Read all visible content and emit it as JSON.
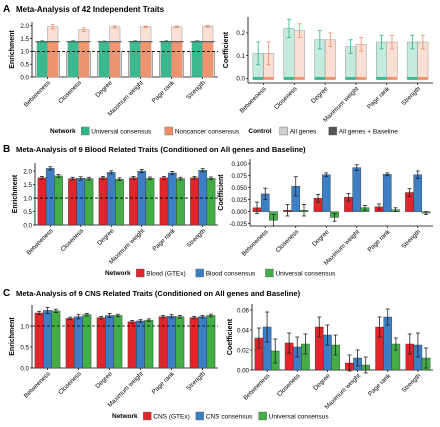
{
  "legend_labels": {
    "network": "Network",
    "control": "Control"
  },
  "colors": {
    "universal": "#2DB58A",
    "noncancer": "#EE8E66",
    "allgenes": "#CFCFCF",
    "allgenes_baseline": "#555555",
    "blood_gtex": "#E0262A",
    "blood_consensus": "#3C7FC4",
    "cns_gtex": "#E0262A",
    "cns_consensus": "#3C7FC4",
    "universal_b": "#43AD46"
  },
  "panels": [
    {
      "letter": "A",
      "title": "Meta-Analysis of 42 Independent Traits",
      "legend": [
        {
          "label": "Universal consensus",
          "color_key": "universal"
        },
        {
          "label": "Noncancer consensus",
          "color_key": "noncancer"
        }
      ],
      "control_legend": [
        {
          "label": "All genes",
          "color_key": "allgenes"
        },
        {
          "label": "All genes + Baseline",
          "color_key": "allgenes_baseline"
        }
      ]
    },
    {
      "letter": "B",
      "title": "Meta-Analysis of 9 Blood Related Traits (Conditioned on All genes and Baseline)",
      "legend": [
        {
          "label": "Blood (GTEx)",
          "color_key": "blood_gtex"
        },
        {
          "label": "Blood consensus",
          "color_key": "blood_consensus"
        },
        {
          "label": "Universal consensus",
          "color_key": "universal_b"
        }
      ]
    },
    {
      "letter": "C",
      "title": "Meta-Analysis of 9 CNS Related Traits (Conditioned on All genes and Baseline)",
      "legend": [
        {
          "label": "CNS (GTEx)",
          "color_key": "cns_gtex"
        },
        {
          "label": "CNS consensus",
          "color_key": "cns_consensus"
        },
        {
          "label": "Universal consensus",
          "color_key": "universal_b"
        }
      ]
    }
  ],
  "chart_data": [
    {
      "id": "A-enrichment",
      "type": "bar",
      "ylabel": "Enrichment",
      "categories": [
        "Betweeness",
        "Closeness",
        "Degree",
        "Maximum weight",
        "Page rank",
        "Strength"
      ],
      "ylim": [
        0,
        2.15
      ],
      "yticks": [
        0,
        0.5,
        1.0,
        1.5,
        2.0
      ],
      "ytick_labels": [
        "0.0",
        "0.5",
        "1.0",
        "1.5",
        "2.0"
      ],
      "refline": 1.0,
      "series": [
        {
          "color_key": "universal",
          "values": [
            1.38,
            1.38,
            1.37,
            1.4,
            1.4,
            1.4
          ],
          "err": [
            0.05,
            0.05,
            0.04,
            0.03,
            0.03,
            0.03
          ]
        },
        {
          "color_key": "noncancer",
          "values": [
            1.97,
            1.85,
            1.96,
            1.96,
            1.96,
            1.98
          ],
          "err": [
            0.09,
            0.07,
            0.04,
            0.03,
            0.03,
            0.03
          ]
        }
      ],
      "overlay": "grey",
      "controls": {
        "allgenes": 1.0,
        "allgenes_baseline": 1.38
      }
    },
    {
      "id": "A-coefficient",
      "type": "bar",
      "ylabel": "Coefficient",
      "categories": [
        "Betweeness",
        "Closeness",
        "Degree",
        "Maximum weight",
        "Page rank",
        "Strength"
      ],
      "ylim": [
        -0.02,
        0.27
      ],
      "yticks": [
        0.0,
        0.1,
        0.2
      ],
      "ytick_labels": [
        "0.0",
        "0.1",
        "0.2"
      ],
      "series": [
        {
          "color_key": "universal",
          "values": [
            0.11,
            0.22,
            0.17,
            0.14,
            0.16,
            0.16
          ],
          "err": [
            0.05,
            0.04,
            0.04,
            0.03,
            0.03,
            0.03
          ]
        },
        {
          "color_key": "noncancer",
          "values": [
            0.11,
            0.21,
            0.17,
            0.15,
            0.16,
            0.16
          ],
          "err": [
            0.05,
            0.03,
            0.03,
            0.03,
            0.03,
            0.03
          ]
        }
      ],
      "overlay": "baseline"
    },
    {
      "id": "B-enrichment",
      "type": "bar",
      "ylabel": "Enrichment",
      "categories": [
        "Betweeness",
        "Closeness",
        "Degree",
        "Maximum weight",
        "Page rank",
        "Strength"
      ],
      "ylim": [
        0,
        2.3
      ],
      "yticks": [
        0,
        0.5,
        1.0,
        1.5,
        2.0
      ],
      "ytick_labels": [
        "0.0",
        "0.5",
        "1.0",
        "1.5",
        "2.0"
      ],
      "refline": 1.0,
      "series": [
        {
          "color_key": "blood_gtex",
          "values": [
            1.75,
            1.72,
            1.75,
            1.75,
            1.75,
            1.75
          ],
          "err": [
            0.05,
            0.05,
            0.05,
            0.05,
            0.05,
            0.05
          ]
        },
        {
          "color_key": "blood_consensus",
          "values": [
            2.1,
            1.73,
            1.95,
            2.0,
            1.93,
            2.03
          ],
          "err": [
            0.06,
            0.06,
            0.06,
            0.06,
            0.06,
            0.06
          ]
        },
        {
          "color_key": "universal_b",
          "values": [
            1.82,
            1.72,
            1.7,
            1.73,
            1.72,
            1.73
          ],
          "err": [
            0.05,
            0.05,
            0.05,
            0.05,
            0.05,
            0.05
          ]
        }
      ]
    },
    {
      "id": "B-coefficient",
      "type": "bar",
      "ylabel": "Coefficient",
      "categories": [
        "Betweeness",
        "Closeness",
        "Degree",
        "Maximum weight",
        "Page rank",
        "Strength"
      ],
      "ylim": [
        -0.03,
        0.11
      ],
      "yticks": [
        -0.025,
        0.0,
        0.025,
        0.05,
        0.075,
        0.1
      ],
      "ytick_labels": [
        "-0.025",
        "0.000",
        "0.025",
        "0.050",
        "0.075",
        "0.100"
      ],
      "series": [
        {
          "color_key": "blood_gtex",
          "values": [
            0.008,
            0.003,
            0.028,
            0.03,
            0.01,
            0.04
          ],
          "err": [
            0.012,
            0.012,
            0.008,
            0.008,
            0.006,
            0.008
          ]
        },
        {
          "color_key": "blood_consensus",
          "values": [
            0.037,
            0.053,
            0.077,
            0.092,
            0.078,
            0.077
          ],
          "err": [
            0.012,
            0.02,
            0.004,
            0.006,
            0.003,
            0.008
          ]
        },
        {
          "color_key": "universal_b",
          "values": [
            -0.018,
            0.003,
            -0.012,
            0.008,
            0.004,
            -0.003
          ],
          "err": [
            0.012,
            0.012,
            0.008,
            0.005,
            0.004,
            0.003
          ]
        }
      ]
    },
    {
      "id": "C-enrichment",
      "type": "bar",
      "ylabel": "Enrichment",
      "categories": [
        "Betweeness",
        "Closeness",
        "Degree",
        "Maximum weight",
        "Page rank",
        "Strength"
      ],
      "ylim": [
        0,
        1.5
      ],
      "yticks": [
        0,
        0.5,
        1.0
      ],
      "ytick_labels": [
        "0.0",
        "0.5",
        "1.0"
      ],
      "refline": 1.0,
      "series": [
        {
          "color_key": "cns_gtex",
          "values": [
            1.31,
            1.18,
            1.2,
            1.1,
            1.22,
            1.2
          ],
          "err": [
            0.04,
            0.03,
            0.03,
            0.03,
            0.03,
            0.03
          ]
        },
        {
          "color_key": "cns_consensus",
          "values": [
            1.37,
            1.22,
            1.25,
            1.12,
            1.23,
            1.22
          ],
          "err": [
            0.07,
            0.05,
            0.05,
            0.03,
            0.04,
            0.03
          ]
        },
        {
          "color_key": "universal_b",
          "values": [
            1.36,
            1.27,
            1.25,
            1.14,
            1.22,
            1.25
          ],
          "err": [
            0.04,
            0.03,
            0.03,
            0.03,
            0.03,
            0.03
          ]
        }
      ]
    },
    {
      "id": "C-coefficient",
      "type": "bar",
      "ylabel": "Coefficient",
      "categories": [
        "Betweeness",
        "Closeness",
        "Degree",
        "Maximum weight",
        "Page rank",
        "Strength"
      ],
      "ylim": [
        0,
        0.066
      ],
      "yticks": [
        0.0,
        0.02,
        0.04,
        0.06
      ],
      "ytick_labels": [
        "0.00",
        "0.02",
        "0.04",
        "0.06"
      ],
      "series": [
        {
          "color_key": "cns_gtex",
          "values": [
            0.032,
            0.027,
            0.043,
            0.007,
            0.043,
            0.026
          ],
          "err": [
            0.01,
            0.01,
            0.01,
            0.008,
            0.01,
            0.01
          ]
        },
        {
          "color_key": "cns_consensus",
          "values": [
            0.043,
            0.023,
            0.035,
            0.012,
            0.053,
            0.025
          ],
          "err": [
            0.015,
            0.01,
            0.01,
            0.008,
            0.008,
            0.012
          ]
        },
        {
          "color_key": "universal_b",
          "values": [
            0.019,
            0.026,
            0.025,
            0.005,
            0.026,
            0.012
          ],
          "err": [
            0.012,
            0.01,
            0.01,
            0.008,
            0.006,
            0.01
          ]
        }
      ]
    }
  ]
}
